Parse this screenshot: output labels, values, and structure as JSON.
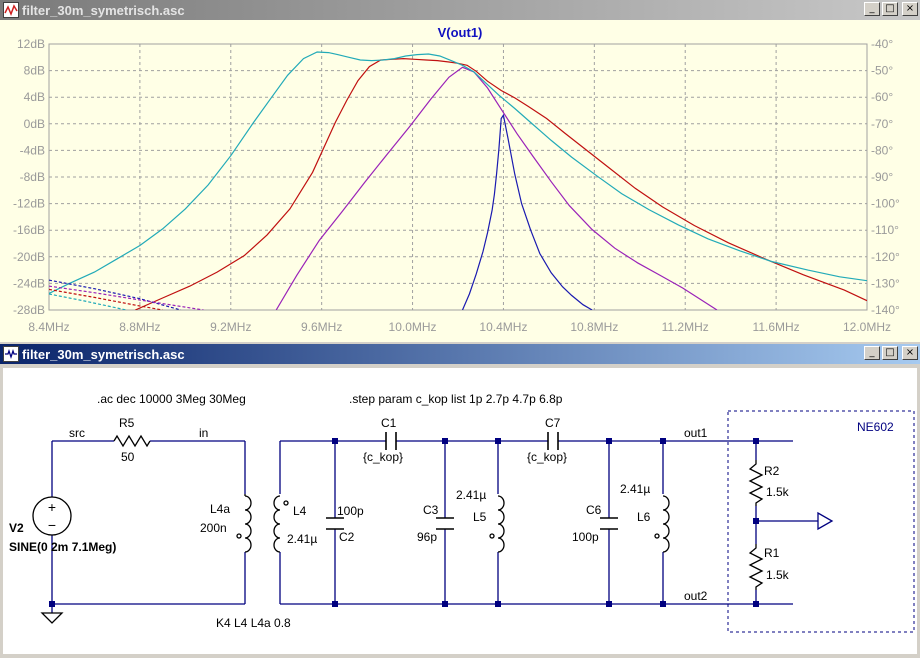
{
  "plot_window": {
    "title": "filter_30m_symetrisch.asc",
    "trace_label": "V(out1)",
    "buttons": {
      "minimize": "_",
      "maximize": "□",
      "close": "×"
    },
    "colors": {
      "plot_bg": "#ffffe6",
      "grid": "#a0a0a0",
      "axis_text": "#9a9a9a",
      "trace_label": "#1010c0"
    },
    "y_left_ticks": [
      "12dB",
      "8dB",
      "4dB",
      "0dB",
      "-4dB",
      "-8dB",
      "-12dB",
      "-16dB",
      "-20dB",
      "-24dB",
      "-28dB"
    ],
    "y_right_ticks": [
      "-40°",
      "-50°",
      "-60°",
      "-70°",
      "-80°",
      "-90°",
      "-100°",
      "-110°",
      "-120°",
      "-130°",
      "-140°"
    ],
    "x_ticks": [
      "8.4MHz",
      "8.8MHz",
      "9.2MHz",
      "9.6MHz",
      "10.0MHz",
      "10.4MHz",
      "10.8MHz",
      "11.2MHz",
      "11.6MHz",
      "12.0MHz"
    ]
  },
  "chart_data": {
    "type": "line",
    "xlabel": "",
    "ylabel": "",
    "xlim": [
      8.4,
      12.0
    ],
    "ylim": [
      -28,
      12
    ],
    "y2lim": [
      -140,
      -40
    ],
    "grid": true,
    "series": [
      {
        "color": "#1a1ab0",
        "x": [
          10.22,
          10.25,
          10.28,
          10.31,
          10.33,
          10.35,
          10.36,
          10.37,
          10.38,
          10.39,
          10.4,
          10.42,
          10.45,
          10.48,
          10.52,
          10.56,
          10.61,
          10.66,
          10.7,
          10.75,
          10.79
        ],
        "y": [
          -28,
          -25.6,
          -22.6,
          -19.2,
          -16.4,
          -13,
          -10.6,
          -7.5,
          -3.8,
          0.8,
          1.3,
          -2.2,
          -7.6,
          -12,
          -16,
          -19.5,
          -22.4,
          -24.5,
          -25.8,
          -27.2,
          -28
        ]
      },
      {
        "color": "#9a22b8",
        "x": [
          9.4,
          9.49,
          9.59,
          9.69,
          9.79,
          9.89,
          9.99,
          10.08,
          10.16,
          10.22,
          10.27,
          10.33,
          10.39,
          10.46,
          10.53,
          10.61,
          10.69,
          10.79,
          10.89,
          10.99,
          11.09,
          11.19,
          11.34
        ],
        "y": [
          -28,
          -22.8,
          -17.5,
          -13.2,
          -8.8,
          -4.5,
          -0.3,
          3.7,
          7,
          8.5,
          7.8,
          5.4,
          2.2,
          -1.5,
          -4.9,
          -8.7,
          -12.3,
          -15.9,
          -18.7,
          -20.9,
          -22.8,
          -24.7,
          -28
        ]
      },
      {
        "color": "#c01010",
        "x": [
          8.78,
          8.9,
          9.02,
          9.14,
          9.26,
          9.36,
          9.46,
          9.56,
          9.66,
          9.71,
          9.76,
          9.81,
          9.86,
          9.91,
          9.96,
          10.01,
          10.06,
          10.11,
          10.16,
          10.2,
          10.24,
          10.28,
          10.33,
          10.39,
          10.45,
          10.51,
          10.59,
          10.67,
          10.76,
          10.86,
          10.98,
          11.1,
          11.24,
          11.39,
          11.55,
          11.72,
          11.9,
          12.0
        ],
        "y": [
          -28,
          -26.2,
          -24.4,
          -22.3,
          -19.8,
          -16.7,
          -12.8,
          -7.3,
          0.2,
          3.5,
          6.5,
          8.6,
          9.6,
          9.7,
          9.8,
          9.7,
          9.6,
          9.5,
          9.3,
          9.1,
          8.8,
          7.9,
          6.4,
          5,
          3.9,
          2.6,
          0.8,
          -1.4,
          -3.8,
          -6.5,
          -9.7,
          -12.5,
          -15.3,
          -17.9,
          -20.3,
          -22.7,
          -25,
          -26.6
        ]
      },
      {
        "color": "#22aab8",
        "x": [
          8.4,
          8.49,
          8.6,
          8.7,
          8.8,
          8.9,
          9,
          9.1,
          9.2,
          9.3,
          9.38,
          9.45,
          9.52,
          9.58,
          9.63,
          9.67,
          9.72,
          9.77,
          9.82,
          9.87,
          9.92,
          9.97,
          10.02,
          10.07,
          10.12,
          10.17,
          10.22,
          10.27,
          10.32,
          10.38,
          10.45,
          10.52,
          10.61,
          10.7,
          10.81,
          10.92,
          11.04,
          11.17,
          11.3,
          11.44,
          11.58,
          11.74,
          11.88,
          12.0
        ],
        "y": [
          -25.5,
          -24,
          -22.3,
          -20.3,
          -18.3,
          -15.8,
          -12.8,
          -9.2,
          -4.8,
          0.2,
          4,
          7.3,
          9.8,
          10.8,
          10.7,
          10.4,
          10,
          9.6,
          9.5,
          9.6,
          9.8,
          10.2,
          10.4,
          10.5,
          10.2,
          9.5,
          8.8,
          7.8,
          6.2,
          4.3,
          2.3,
          0.2,
          -2.5,
          -5,
          -7.8,
          -10.5,
          -12.9,
          -15.2,
          -17.3,
          -19.1,
          -20.7,
          -22,
          -23,
          -23.6
        ]
      },
      {
        "color": "#1a1ab0",
        "dashed": true,
        "x": [
          8.4,
          8.6,
          8.8,
          8.98
        ],
        "y": [
          -23.5,
          -24.8,
          -26.3,
          -28
        ]
      },
      {
        "color": "#9a22b8",
        "dashed": true,
        "x": [
          8.4,
          8.6,
          8.8,
          9.08
        ],
        "y": [
          -24.4,
          -25.4,
          -26.5,
          -28
        ]
      },
      {
        "color": "#c01010",
        "dashed": true,
        "x": [
          8.4,
          8.6,
          8.8,
          8.9
        ],
        "y": [
          -24.9,
          -26.1,
          -27.4,
          -28
        ]
      },
      {
        "color": "#22aab8",
        "dashed": true,
        "x": [
          8.4,
          8.55,
          8.74
        ],
        "y": [
          -25.6,
          -26.6,
          -28
        ]
      }
    ]
  },
  "schematic_window": {
    "title": "filter_30m_symetrisch.asc",
    "buttons": {
      "minimize": "_",
      "maximize": "□",
      "close": "×"
    },
    "colors": {
      "canvas_bg": "#ffffff",
      "wire": "#000080",
      "component": "#000000",
      "text": "#000000",
      "ic_text": "#000080"
    },
    "directives": {
      "ac": ".ac dec 10000 3Meg 30Meg",
      "step": ".step param c_kop list 1p 2.7p 4.7p 6.8p",
      "coupling": "K4 L4 L4a 0.8"
    },
    "nets": {
      "src": "src",
      "in": "in",
      "out1": "out1",
      "out2": "out2"
    },
    "ic_label": "NE602",
    "source": {
      "name": "V2",
      "value": "SINE(0 2m 7.1Meg)"
    },
    "r5": {
      "name": "R5",
      "value": "50"
    },
    "l4a": {
      "name": "L4a",
      "value": "200n"
    },
    "l4": {
      "name": "L4",
      "value": "2.41µ"
    },
    "c2": {
      "name": "C2",
      "value": "100p"
    },
    "c1": {
      "name": "C1",
      "value": "{c_kop}"
    },
    "c3": {
      "name": "C3",
      "value": "96p"
    },
    "l5": {
      "name": "L5",
      "value": "2.41µ"
    },
    "c7": {
      "name": "C7",
      "value": "{c_kop}"
    },
    "c6": {
      "name": "C6",
      "value": "100p"
    },
    "l6": {
      "name": "L6",
      "value": "2.41µ"
    },
    "r2": {
      "name": "R2",
      "value": "1.5k"
    },
    "r1": {
      "name": "R1",
      "value": "1.5k"
    }
  }
}
